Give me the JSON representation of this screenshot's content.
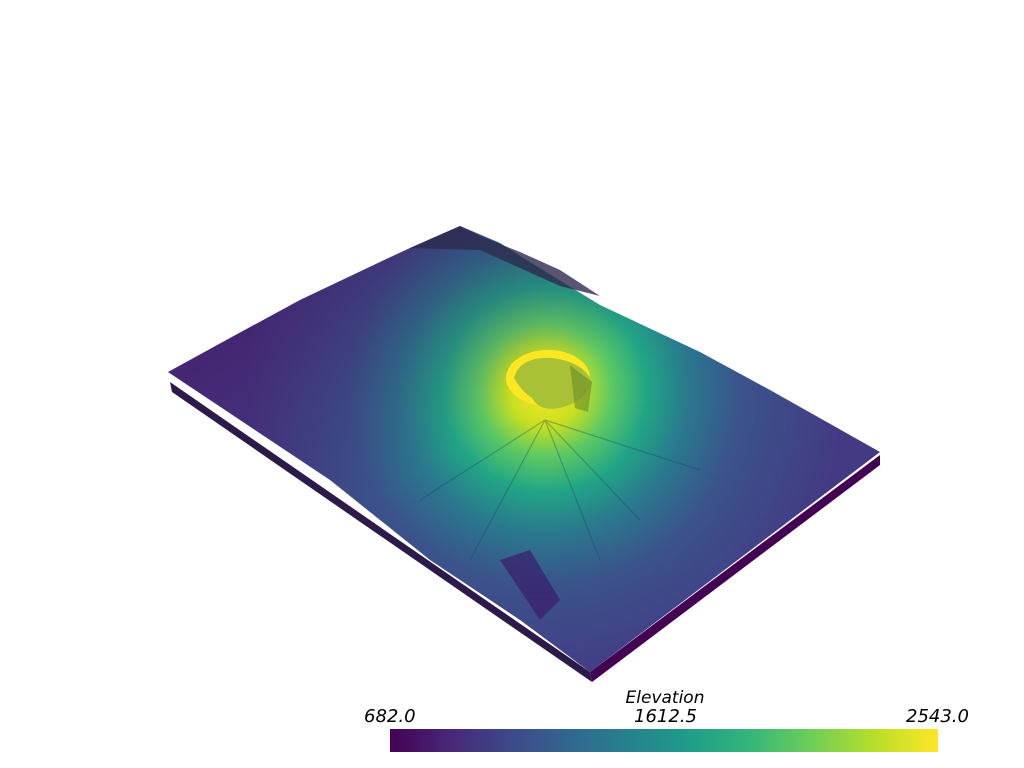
{
  "scalar_bar": {
    "title": "Elevation",
    "min_label": "682.0",
    "mid_label": "1612.5",
    "max_label": "2543.0",
    "colormap": "viridis",
    "colors": [
      "#440154",
      "#482878",
      "#3e4989",
      "#31688e",
      "#26828e",
      "#1f9e89",
      "#35b779",
      "#6ece58",
      "#b5de2b",
      "#fde725"
    ]
  },
  "surface": {
    "description_colors": {
      "low": "#46327e",
      "mid": "#2a788e",
      "high": "#d8e219",
      "base": "#440154",
      "shadow_edge": "#1f2d3a"
    }
  }
}
